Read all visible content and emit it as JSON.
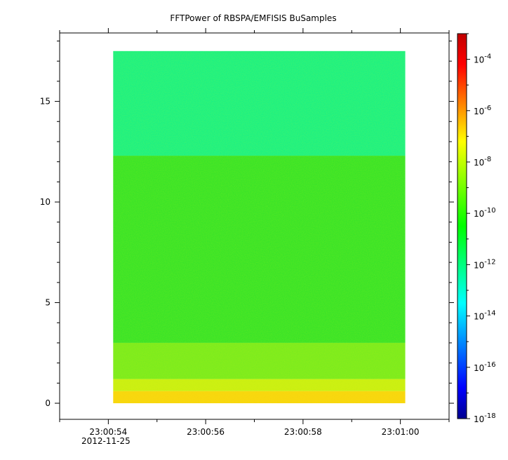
{
  "chart_data": {
    "type": "heatmap",
    "title": "FFTPower of RBSPA/EMFISIS  BuSamples",
    "xlabel": "",
    "ylabel": "",
    "x_range": [
      "23:00:53.0",
      "23:01:01.0"
    ],
    "x_data_extent": [
      "23:00:54.1",
      "23:01:00.1"
    ],
    "x_ticks": [
      "23:00:54",
      "23:00:56",
      "23:00:58",
      "23:01:00"
    ],
    "x_date_label": "2012-11-25",
    "ylim": [
      -0.8,
      18.4
    ],
    "y_data_extent": [
      0,
      17.5
    ],
    "y_ticks": [
      0,
      5,
      10,
      15
    ],
    "colorbar": {
      "scale": "log",
      "range": [
        1e-18,
        0.001
      ],
      "tick_exponents": [
        -4,
        -6,
        -8,
        -10,
        -12,
        -14,
        -16,
        -18
      ],
      "tick_base": "10",
      "colormap": [
        "#00008f",
        "#0000ff",
        "#00ffff",
        "#00ff00",
        "#ffff00",
        "#ff0000",
        "#800000"
      ]
    },
    "bands": [
      {
        "y_from": 12.3,
        "y_to": 17.5,
        "level": -12.4,
        "color": "#10f08a"
      },
      {
        "y_from": 3.0,
        "y_to": 12.3,
        "level": -10.2,
        "color": "#2fe22b"
      },
      {
        "y_from": 1.2,
        "y_to": 3.0,
        "level": -9.6,
        "color": "#74ea20"
      },
      {
        "y_from": 0.6,
        "y_to": 1.2,
        "level": -8.8,
        "color": "#c6ee14"
      },
      {
        "y_from": 0.0,
        "y_to": 0.6,
        "level": -8.0,
        "color": "#f7d310"
      }
    ]
  }
}
